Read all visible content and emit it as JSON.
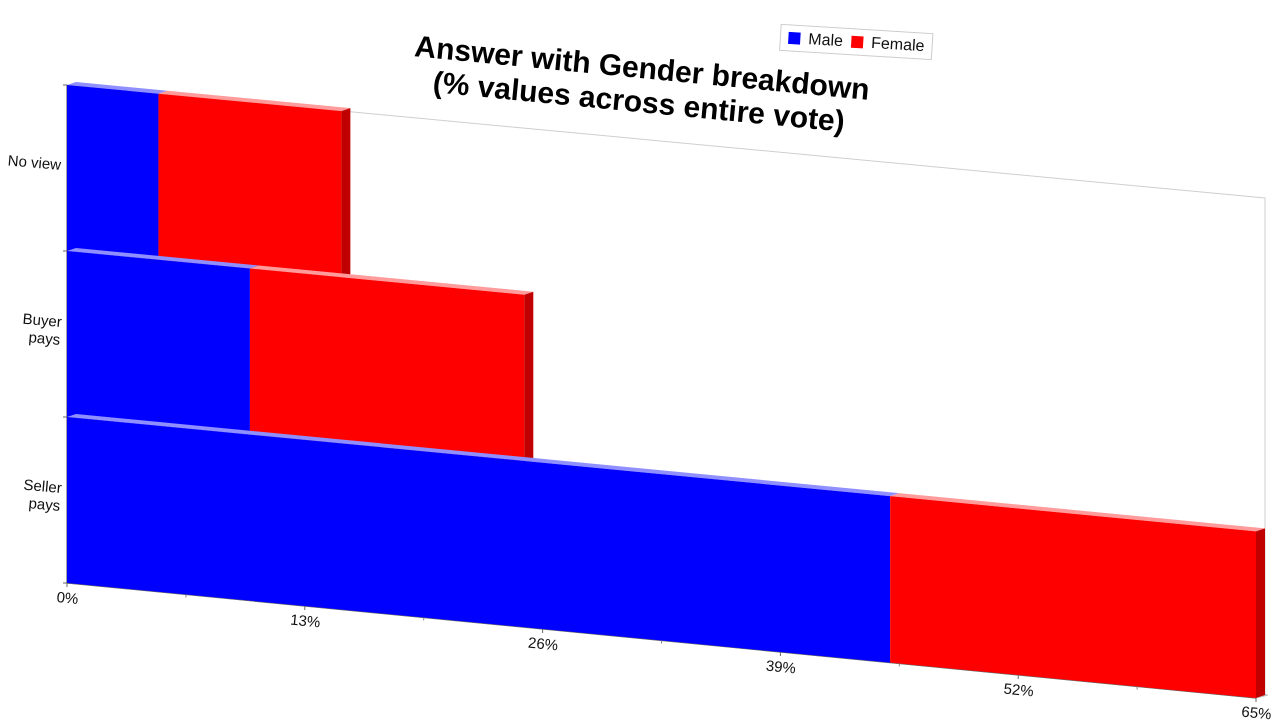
{
  "chart_data": {
    "type": "bar",
    "orientation": "horizontal",
    "stacked": true,
    "title": [
      "Answer with Gender breakdown",
      "(% values across entire vote)"
    ],
    "categories": [
      "No view",
      "Buyer pays",
      "Seller pays"
    ],
    "category_lines": [
      [
        "No view"
      ],
      [
        "Buyer",
        "pays"
      ],
      [
        "Seller",
        "pays"
      ]
    ],
    "series": [
      {
        "name": "Male",
        "color": "#0000ff",
        "values": [
          5,
          10,
          45
        ]
      },
      {
        "name": "Female",
        "color": "#ff0000",
        "values": [
          10,
          15,
          20
        ]
      }
    ],
    "xlim": [
      0,
      65
    ],
    "xticks": [
      "0%",
      "13%",
      "26%",
      "39%",
      "52%",
      "65%"
    ],
    "xtick_values": [
      0,
      13,
      26,
      39,
      52,
      65
    ],
    "legend_position": "top-right",
    "grid": false
  }
}
